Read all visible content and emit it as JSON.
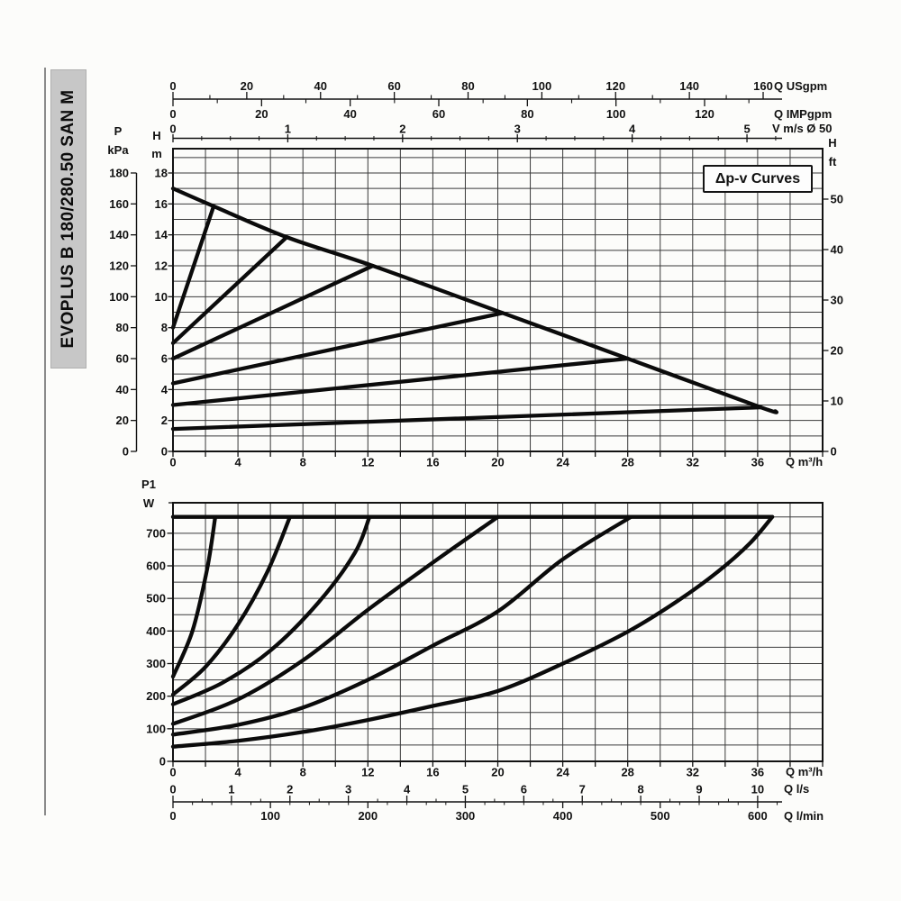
{
  "sidebar": {
    "title": "EVOPLUS B 180/280.50 SAN M"
  },
  "chart_data": [
    {
      "type": "line",
      "title": "Head vs flow Δp-v curves",
      "annotation": "Δp-v Curves",
      "x_axis": {
        "unit": "Q m³/h",
        "min": 0,
        "max": 40,
        "grid_step": 2,
        "ticks": [
          0,
          4,
          8,
          12,
          16,
          20,
          24,
          28,
          32,
          36
        ]
      },
      "x_axes_top": [
        {
          "unit": "Q USgpm",
          "ticks": [
            0,
            20,
            40,
            60,
            80,
            100,
            120,
            140,
            160
          ],
          "minor_step": 10,
          "m3h_per_unit": 0.22712
        },
        {
          "unit": "Q IMPgpm",
          "ticks": [
            0,
            20,
            40,
            60,
            80,
            100,
            120
          ],
          "minor_step": 10,
          "m3h_per_unit": 0.27277
        },
        {
          "unit": "V m/s Ø 50",
          "ticks": [
            0,
            1,
            2,
            3,
            4,
            5
          ],
          "minor_step": 0.25,
          "m3h_per_unit": 7.0686
        }
      ],
      "y_axis": {
        "name": "H",
        "unit": "m",
        "min": 0,
        "max": 19.6,
        "grid_step": 1,
        "ticks": [
          18,
          16,
          14,
          12,
          10,
          8,
          6,
          4,
          2,
          0
        ]
      },
      "y_axis_left_extra": {
        "name": "P",
        "unit": "kPa",
        "ticks": [
          180,
          160,
          140,
          120,
          100,
          80,
          60,
          40,
          20,
          0
        ]
      },
      "y_axis_right": {
        "name": "H",
        "unit": "ft",
        "ticks": [
          50,
          40,
          30,
          20,
          10,
          0
        ]
      },
      "series": [
        {
          "name": "max-speed-curve",
          "smooth": true,
          "points": [
            [
              0,
              17
            ],
            [
              2.5,
              15.85
            ],
            [
              7,
              13.85
            ],
            [
              12.3,
              12
            ],
            [
              20.3,
              8.95
            ],
            [
              28,
              6
            ],
            [
              36.2,
              2.85
            ],
            [
              37.1,
              2.6
            ]
          ]
        },
        {
          "name": "dpv-curve-1",
          "points": [
            [
              0,
              8
            ],
            [
              2.5,
              15.85
            ]
          ]
        },
        {
          "name": "dpv-curve-2",
          "points": [
            [
              0,
              7
            ],
            [
              7,
              13.85
            ]
          ]
        },
        {
          "name": "dpv-curve-3",
          "points": [
            [
              0,
              6
            ],
            [
              12.3,
              12
            ]
          ]
        },
        {
          "name": "dpv-curve-4",
          "points": [
            [
              0,
              4.4
            ],
            [
              20.3,
              8.95
            ]
          ]
        },
        {
          "name": "dpv-curve-5",
          "points": [
            [
              0,
              3
            ],
            [
              28,
              6
            ]
          ]
        },
        {
          "name": "dpv-curve-6",
          "points": [
            [
              0,
              1.45
            ],
            [
              36.2,
              2.85
            ]
          ]
        }
      ]
    },
    {
      "type": "line",
      "title": "Input power P1 vs flow",
      "x_axis": {
        "unit": "Q m³/h",
        "min": 0,
        "max": 40,
        "grid_step": 2,
        "ticks": [
          0,
          4,
          8,
          12,
          16,
          20,
          24,
          28,
          32,
          36
        ]
      },
      "x_axes_bottom": [
        {
          "unit": "Q l/s",
          "ticks": [
            0,
            1,
            2,
            3,
            4,
            5,
            6,
            7,
            8,
            9,
            10
          ],
          "minor_step": 0.5,
          "m3h_per_unit": 3.6
        },
        {
          "unit": "Q l/min",
          "ticks": [
            0,
            100,
            200,
            300,
            400,
            500,
            600
          ],
          "minor_step": 20,
          "m3h_per_unit": 0.06
        }
      ],
      "y_axis": {
        "name": "P1",
        "unit": "W",
        "min": 0,
        "max": 794,
        "grid_step": 50,
        "ticks": [
          700,
          600,
          500,
          400,
          300,
          200,
          100,
          0
        ]
      },
      "series": [
        {
          "name": "max-power-line",
          "points": [
            [
              0,
              750
            ],
            [
              36.9,
              750
            ]
          ]
        },
        {
          "name": "power-curve-1",
          "smooth": true,
          "points": [
            [
              0,
              260
            ],
            [
              1.2,
              400
            ],
            [
              2.1,
              590
            ],
            [
              2.6,
              750
            ]
          ]
        },
        {
          "name": "power-curve-2",
          "smooth": true,
          "points": [
            [
              0,
              205
            ],
            [
              2,
              290
            ],
            [
              4,
              420
            ],
            [
              5.8,
              580
            ],
            [
              7.2,
              750
            ]
          ]
        },
        {
          "name": "power-curve-3",
          "smooth": true,
          "points": [
            [
              0,
              175
            ],
            [
              3,
              240
            ],
            [
              6,
              340
            ],
            [
              9,
              490
            ],
            [
              11.2,
              640
            ],
            [
              12.1,
              750
            ]
          ]
        },
        {
          "name": "power-curve-4",
          "smooth": true,
          "points": [
            [
              0,
              115
            ],
            [
              4,
              190
            ],
            [
              8,
              310
            ],
            [
              12,
              465
            ],
            [
              16,
              610
            ],
            [
              20,
              750
            ]
          ]
        },
        {
          "name": "power-curve-5",
          "smooth": true,
          "points": [
            [
              0,
              82
            ],
            [
              4,
              112
            ],
            [
              8,
              165
            ],
            [
              12,
              250
            ],
            [
              16,
              355
            ],
            [
              20,
              460
            ],
            [
              24,
              620
            ],
            [
              28.2,
              750
            ]
          ]
        },
        {
          "name": "power-curve-6",
          "smooth": true,
          "points": [
            [
              0,
              45
            ],
            [
              4,
              63
            ],
            [
              8,
              90
            ],
            [
              12,
              127
            ],
            [
              16,
              170
            ],
            [
              20,
              216
            ],
            [
              24,
              300
            ],
            [
              28,
              398
            ],
            [
              31,
              490
            ],
            [
              33.5,
              580
            ],
            [
              35.5,
              668
            ],
            [
              36.9,
              750
            ]
          ]
        }
      ]
    }
  ],
  "colors": {
    "curve": "#0b0b0b",
    "grid": "#3a3a3a",
    "frame": "#121212",
    "bar_bg": "#c7c7c7"
  }
}
